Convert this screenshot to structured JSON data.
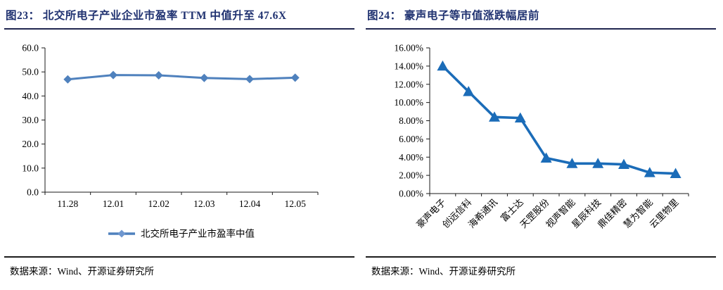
{
  "figures": [
    {
      "title": "图23：  北交所电子产业企业市盈率 TTM 中值升至 47.6X",
      "source": "数据来源：Wind、开源证券研究所"
    },
    {
      "title": "图24：  豪声电子等市值涨跌幅居前",
      "source": "数据来源：Wind、开源证券研究所"
    }
  ],
  "chart_data": [
    {
      "type": "line",
      "title": "北交所电子产业企业市盈率TTM中值升至47.6X",
      "categories": [
        "11.28",
        "12.01",
        "12.02",
        "12.03",
        "12.04",
        "12.05"
      ],
      "series": [
        {
          "name": "北交所电子产业市盈率中值",
          "values": [
            46.9,
            48.7,
            48.6,
            47.5,
            47.0,
            47.6
          ],
          "color": "#4f81bd",
          "marker": "diamond"
        }
      ],
      "ylim": [
        0,
        60
      ],
      "ytick_step": 10,
      "ytick_decimals": 1,
      "ytick_suffix": "",
      "xlabel": "",
      "ylabel": "",
      "grid": false,
      "legend_position": "bottom"
    },
    {
      "type": "line",
      "title": "豪声电子等市值涨跌幅居前",
      "categories": [
        "豪声电子",
        "创远信科",
        "海希通讯",
        "富士达",
        "天罡股份",
        "视声智能",
        "星辰科技",
        "鼎佳精密",
        "慧为智能",
        "云里物里"
      ],
      "series": [
        {
          "name": "",
          "values": [
            14.0,
            11.2,
            8.4,
            8.3,
            3.9,
            3.3,
            3.3,
            3.2,
            2.3,
            2.2
          ],
          "color": "#1b6cb8",
          "marker": "triangle"
        }
      ],
      "ylim": [
        0,
        16
      ],
      "ytick_step": 2,
      "ytick_decimals": 2,
      "ytick_suffix": "%",
      "xlabel": "",
      "ylabel": "",
      "grid": false,
      "legend_position": "none",
      "xtick_rotation": 45
    }
  ],
  "colors": {
    "title_navy": "#1f3170",
    "series_left": "#4f81bd",
    "series_right": "#1b6cb8",
    "axis": "#1a1a1a"
  }
}
